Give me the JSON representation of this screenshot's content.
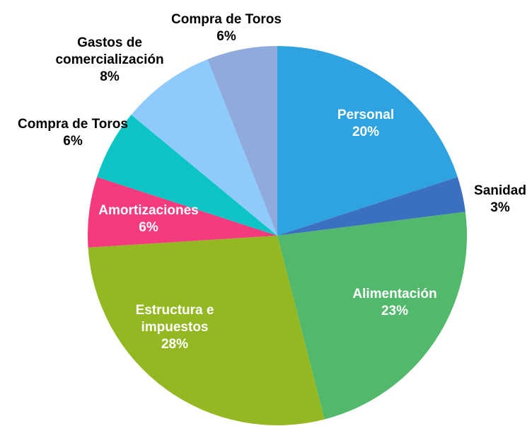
{
  "chart_data": {
    "type": "pie",
    "categories": [
      "Personal",
      "Sanidad",
      "Alimentación",
      "Estructura e impuestos",
      "Amortizaciones",
      "Compra de Toros",
      "Gastos de comercialización",
      "Compra de Toros"
    ],
    "values": [
      20,
      3,
      23,
      28,
      6,
      6,
      8,
      6
    ],
    "value_labels": [
      "20%",
      "3%",
      "23%",
      "28%",
      "6%",
      "6%",
      "8%",
      "6%"
    ],
    "colors": [
      "#2ea3e0",
      "#3b6fc0",
      "#52b86b",
      "#93b822",
      "#f53a7e",
      "#0dc4c4",
      "#8ecbfc",
      "#8fabdc"
    ]
  }
}
